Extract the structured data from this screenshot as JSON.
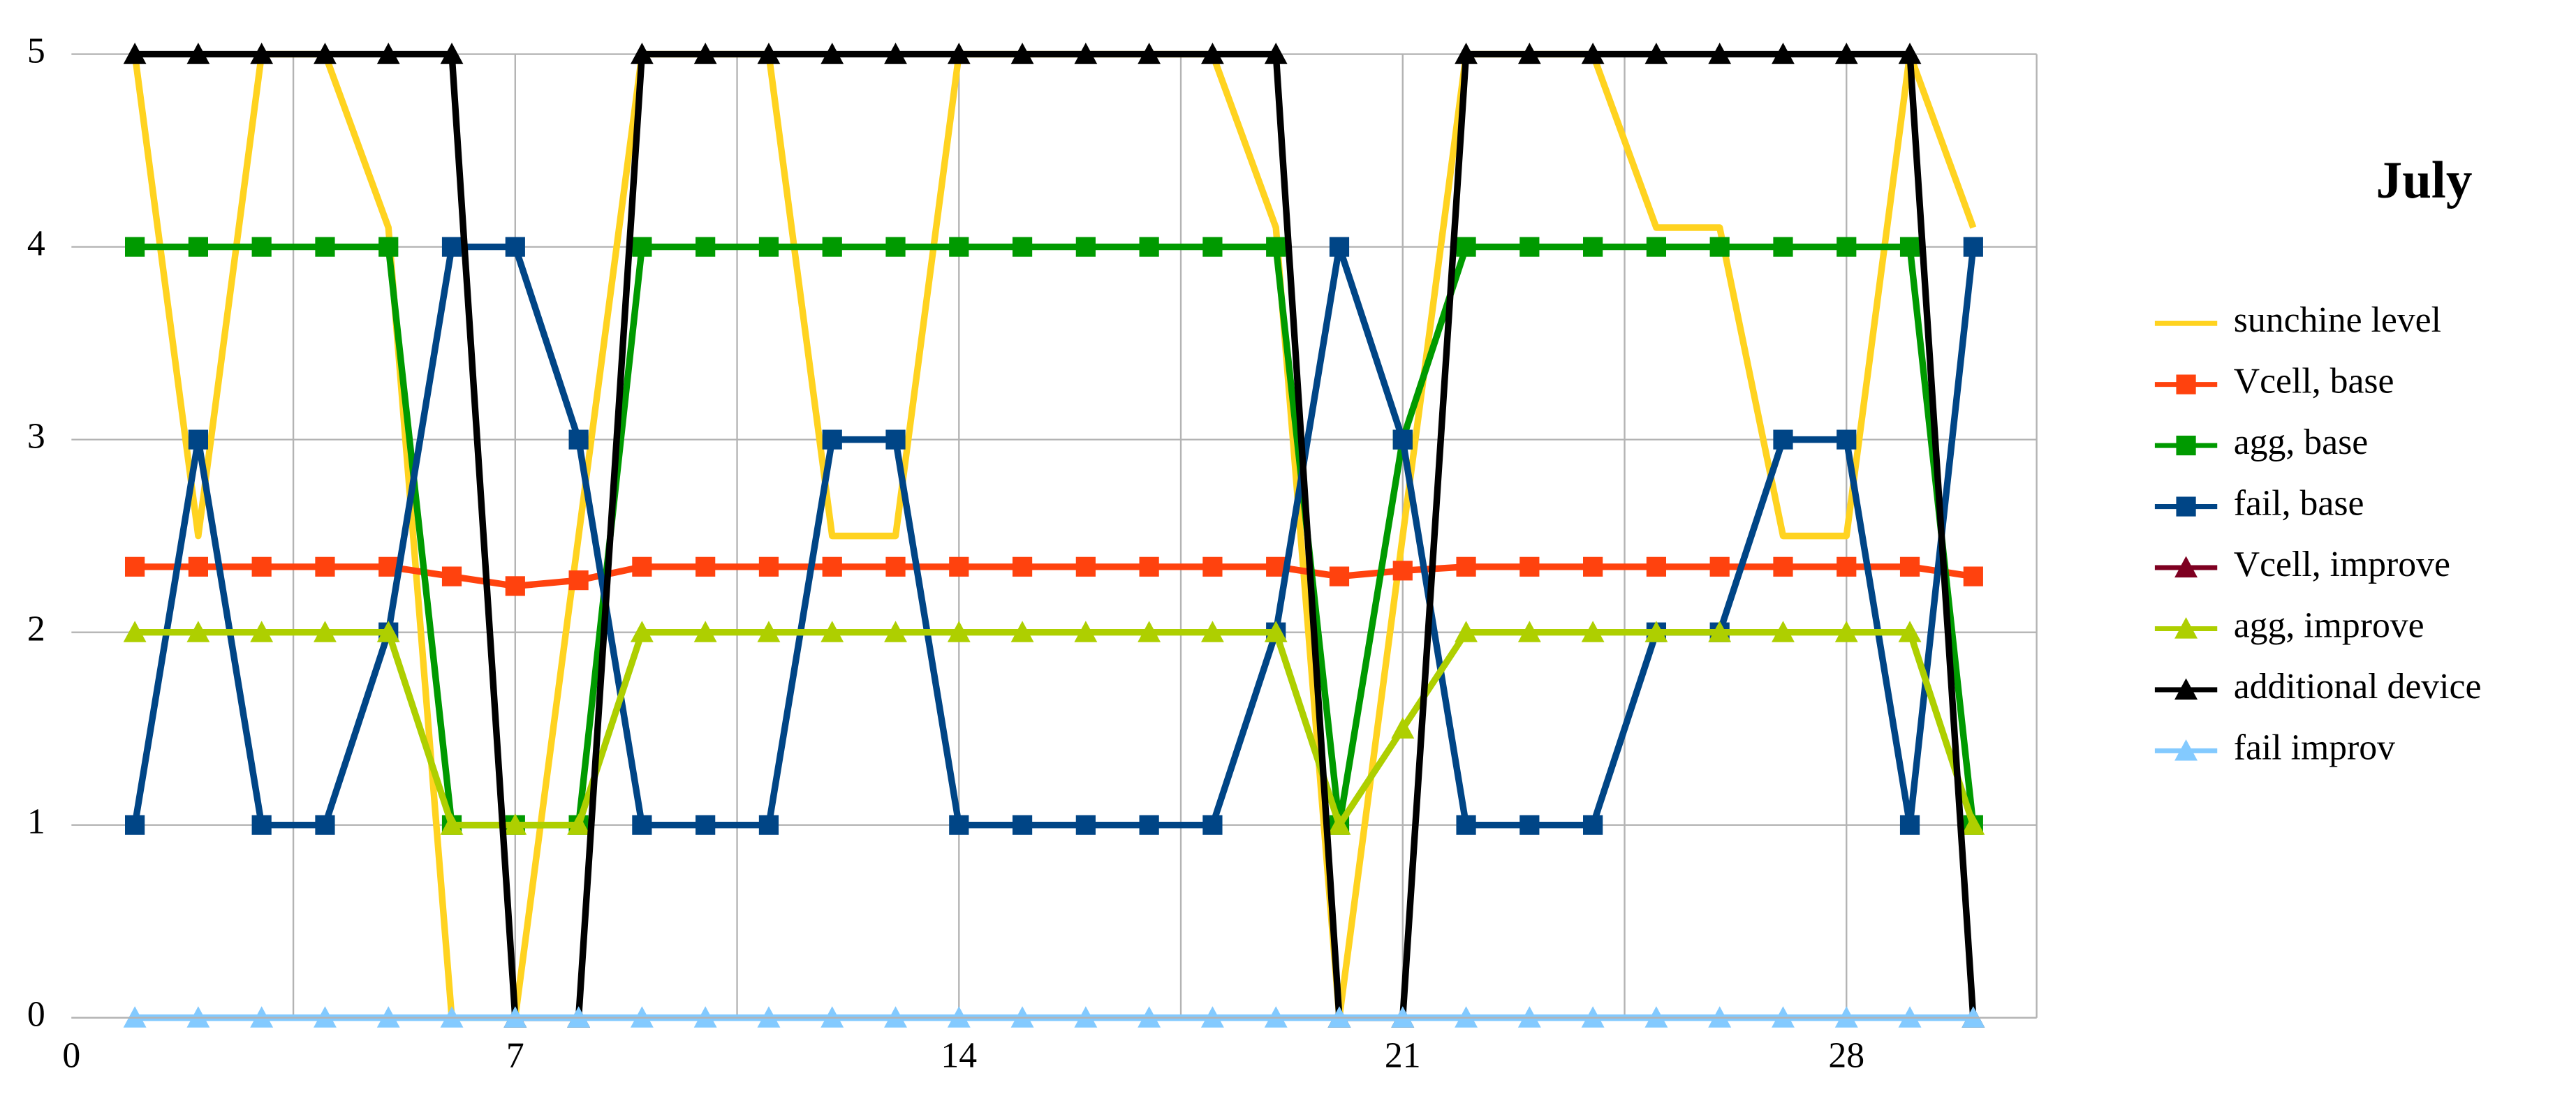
{
  "chart_data": {
    "type": "line",
    "title": "July",
    "x": [
      1,
      2,
      3,
      4,
      5,
      6,
      7,
      8,
      9,
      10,
      11,
      12,
      13,
      14,
      15,
      16,
      17,
      18,
      19,
      20,
      21,
      22,
      23,
      24,
      25,
      26,
      27,
      28,
      29,
      30
    ],
    "xlim": [
      0,
      31
    ],
    "xticks": [
      0,
      7,
      14,
      21,
      28
    ],
    "xgrid": [
      3.5,
      7,
      10.5,
      14,
      17.5,
      21,
      24.5,
      28,
      31
    ],
    "ylim": [
      0,
      5
    ],
    "yticks": [
      0,
      1,
      2,
      3,
      4,
      5
    ],
    "grid": true,
    "legend": "right",
    "series": [
      {
        "name": "sunchine level",
        "color": "#ffd320",
        "marker": "none",
        "values": [
          5,
          2.5,
          5,
          5,
          4.1,
          0,
          0,
          2.5,
          5,
          5,
          5,
          2.5,
          2.5,
          5,
          5,
          5,
          5,
          5,
          4.1,
          0,
          2.5,
          5,
          5,
          5,
          4.1,
          4.1,
          2.5,
          2.5,
          5,
          4.1
        ]
      },
      {
        "name": "Vcell, base",
        "color": "#ff420e",
        "marker": "square",
        "values": [
          2.34,
          2.34,
          2.34,
          2.34,
          2.34,
          2.29,
          2.24,
          2.27,
          2.34,
          2.34,
          2.34,
          2.34,
          2.34,
          2.34,
          2.34,
          2.34,
          2.34,
          2.34,
          2.34,
          2.29,
          2.32,
          2.34,
          2.34,
          2.34,
          2.34,
          2.34,
          2.34,
          2.34,
          2.34,
          2.29
        ]
      },
      {
        "name": "agg, base",
        "color": "#009a00",
        "marker": "square",
        "values": [
          4,
          4,
          4,
          4,
          4,
          1,
          1,
          1,
          4,
          4,
          4,
          4,
          4,
          4,
          4,
          4,
          4,
          4,
          4,
          1,
          3,
          4,
          4,
          4,
          4,
          4,
          4,
          4,
          4,
          1
        ]
      },
      {
        "name": "fail, base",
        "color": "#004586",
        "marker": "square",
        "values": [
          1,
          3,
          1,
          1,
          2,
          4,
          4,
          3,
          1,
          1,
          1,
          3,
          3,
          1,
          1,
          1,
          1,
          1,
          2,
          4,
          3,
          1,
          1,
          1,
          2,
          2,
          3,
          3,
          1,
          4
        ]
      },
      {
        "name": "Vcell, improve",
        "color": "#7e0021",
        "marker": "triangle",
        "values": [
          null,
          null,
          null,
          null,
          null,
          null,
          null,
          null,
          null,
          null,
          null,
          null,
          null,
          null,
          null,
          null,
          null,
          null,
          null,
          null,
          null,
          null,
          null,
          null,
          null,
          null,
          null,
          null,
          null,
          null
        ]
      },
      {
        "name": "agg, improve",
        "color": "#aecf00",
        "marker": "triangle",
        "values": [
          2,
          2,
          2,
          2,
          2,
          1,
          1,
          1,
          2,
          2,
          2,
          2,
          2,
          2,
          2,
          2,
          2,
          2,
          2,
          1,
          1.5,
          2,
          2,
          2,
          2,
          2,
          2,
          2,
          2,
          1
        ]
      },
      {
        "name": "additional device",
        "color": "#000000",
        "marker": "triangle",
        "values": [
          5,
          5,
          5,
          5,
          5,
          5,
          0,
          0,
          5,
          5,
          5,
          5,
          5,
          5,
          5,
          5,
          5,
          5,
          5,
          0,
          0,
          5,
          5,
          5,
          5,
          5,
          5,
          5,
          5,
          0
        ]
      },
      {
        "name": "fail improv",
        "color": "#83caff",
        "marker": "triangle",
        "values": [
          0,
          0,
          0,
          0,
          0,
          0,
          0,
          0,
          0,
          0,
          0,
          0,
          0,
          0,
          0,
          0,
          0,
          0,
          0,
          0,
          0,
          0,
          0,
          0,
          0,
          0,
          0,
          0,
          0,
          0
        ]
      }
    ]
  }
}
